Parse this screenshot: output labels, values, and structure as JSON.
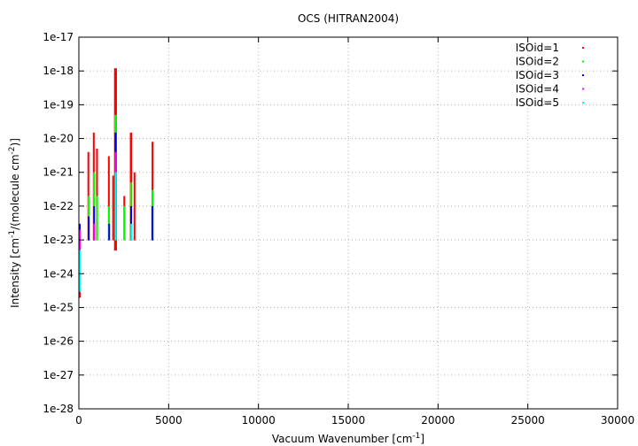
{
  "chart_data": {
    "type": "scatter",
    "title": "OCS (HITRAN2004)",
    "xlabel": "Vacuum Wavenumber [cm",
    "xlabel_sup": "-1",
    "xlabel_tail": "]",
    "ylabel_parts": [
      "Intensity [cm",
      "-1",
      "/(molecule cm",
      "-2",
      ")]"
    ],
    "xlim": [
      0,
      30000
    ],
    "ylim": [
      1e-28,
      1e-17
    ],
    "yscale": "log",
    "grid": true,
    "legend_position": "top-right",
    "x_ticks": [
      "0",
      "5000",
      "10000",
      "15000",
      "20000",
      "25000",
      "30000"
    ],
    "x_tick_values": [
      0,
      5000,
      10000,
      15000,
      20000,
      25000,
      30000
    ],
    "y_ticks": [
      "1e-28",
      "1e-27",
      "1e-26",
      "1e-25",
      "1e-24",
      "1e-23",
      "1e-22",
      "1e-21",
      "1e-20",
      "1e-19",
      "1e-18",
      "1e-17"
    ],
    "y_tick_exponents": [
      -28,
      -27,
      -26,
      -25,
      -24,
      -23,
      -22,
      -21,
      -20,
      -19,
      -18,
      -17
    ],
    "series": [
      {
        "name": "ISOid=1",
        "color": "#ff0000",
        "bands": [
          {
            "x": [
              0,
              30
            ],
            "ymin": 2e-25,
            "ymax": 1e-23
          },
          {
            "x": [
              480,
              560
            ],
            "ymin": 1e-23,
            "ymax": 4e-21
          },
          {
            "x": [
              780,
              880
            ],
            "ymin": 1e-23,
            "ymax": 1.5e-20
          },
          {
            "x": [
              960,
              1060
            ],
            "ymin": 1e-23,
            "ymax": 5e-21
          },
          {
            "x": [
              1620,
              1720
            ],
            "ymin": 1e-23,
            "ymax": 3e-21
          },
          {
            "x": [
              1860,
              1900
            ],
            "ymin": 1e-23,
            "ymax": 8e-22
          },
          {
            "x": [
              1960,
              2120
            ],
            "ymin": 5e-24,
            "ymax": 1.2e-18
          },
          {
            "x": [
              2480,
              2560
            ],
            "ymin": 1e-23,
            "ymax": 2e-22
          },
          {
            "x": [
              2840,
              2960
            ],
            "ymin": 1e-23,
            "ymax": 1.5e-20
          },
          {
            "x": [
              3050,
              3110
            ],
            "ymin": 1e-23,
            "ymax": 1e-21
          },
          {
            "x": [
              4050,
              4150
            ],
            "ymin": 1e-23,
            "ymax": 8e-21
          }
        ]
      },
      {
        "name": "ISOid=2",
        "color": "#00ff00",
        "bands": [
          {
            "x": [
              490,
              550
            ],
            "ymin": 1e-23,
            "ymax": 2e-22
          },
          {
            "x": [
              790,
              870
            ],
            "ymin": 1e-23,
            "ymax": 1e-21
          },
          {
            "x": [
              970,
              1050
            ],
            "ymin": 1e-23,
            "ymax": 2e-22
          },
          {
            "x": [
              1630,
              1710
            ],
            "ymin": 1e-23,
            "ymax": 1e-22
          },
          {
            "x": [
              1970,
              2110
            ],
            "ymin": 1e-23,
            "ymax": 5e-20
          },
          {
            "x": [
              2490,
              2550
            ],
            "ymin": 1e-23,
            "ymax": 1e-22
          },
          {
            "x": [
              2850,
              2950
            ],
            "ymin": 1e-23,
            "ymax": 5e-22
          },
          {
            "x": [
              4060,
              4140
            ],
            "ymin": 1e-23,
            "ymax": 3e-22
          }
        ]
      },
      {
        "name": "ISOid=3",
        "color": "#0000ff",
        "bands": [
          {
            "x": [
              0,
              25
            ],
            "ymin": 1e-24,
            "ymax": 3e-23
          },
          {
            "x": [
              500,
              540
            ],
            "ymin": 1e-23,
            "ymax": 5e-23
          },
          {
            "x": [
              800,
              860
            ],
            "ymin": 1e-23,
            "ymax": 1e-22
          },
          {
            "x": [
              1640,
              1700
            ],
            "ymin": 1e-23,
            "ymax": 3e-23
          },
          {
            "x": [
              1980,
              2100
            ],
            "ymin": 1e-23,
            "ymax": 1.5e-20
          },
          {
            "x": [
              2860,
              2940
            ],
            "ymin": 1e-23,
            "ymax": 1e-22
          },
          {
            "x": [
              4040,
              4120
            ],
            "ymin": 1e-23,
            "ymax": 1e-22
          }
        ]
      },
      {
        "name": "ISOid=4",
        "color": "#ff00ff",
        "bands": [
          {
            "x": [
              0,
              20
            ],
            "ymin": 3e-24,
            "ymax": 2e-23
          },
          {
            "x": [
              810,
              850
            ],
            "ymin": 1e-23,
            "ymax": 3e-23
          },
          {
            "x": [
              1990,
              2090
            ],
            "ymin": 1e-23,
            "ymax": 4e-21
          },
          {
            "x": [
              2870,
              2930
            ],
            "ymin": 1e-23,
            "ymax": 3e-23
          }
        ]
      },
      {
        "name": "ISOid=5",
        "color": "#00ffff",
        "bands": [
          {
            "x": [
              0,
              20
            ],
            "ymin": 3e-25,
            "ymax": 5e-24
          },
          {
            "x": [
              2000,
              2080
            ],
            "ymin": 1e-23,
            "ymax": 1e-21
          },
          {
            "x": [
              2880,
              2920
            ],
            "ymin": 1e-23,
            "ymax": 3e-23
          }
        ]
      }
    ]
  }
}
